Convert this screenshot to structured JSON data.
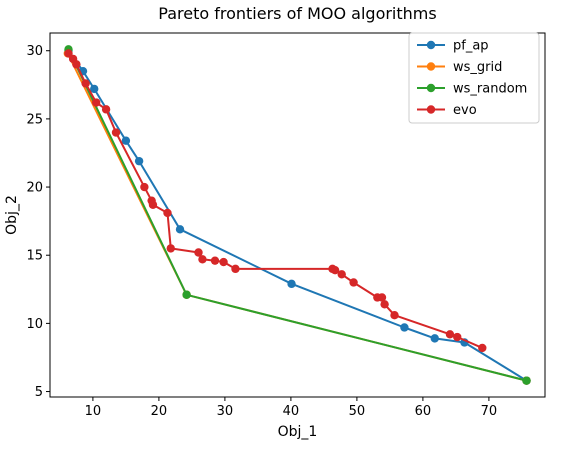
{
  "chart_data": {
    "type": "line",
    "title": "Pareto frontiers of MOO algorithms",
    "xlabel": "Obj_1",
    "ylabel": "Obj_2",
    "xlim": [
      3.5,
      78.5
    ],
    "ylim": [
      4.6,
      31.3
    ],
    "xticks": [
      10,
      20,
      30,
      40,
      50,
      60,
      70
    ],
    "yticks": [
      5,
      10,
      15,
      20,
      25,
      30
    ],
    "legend_position": "top-right",
    "grid": false,
    "series": [
      {
        "name": "pf_ap",
        "color": "#1f77b4",
        "points": [
          [
            6.3,
            30.0
          ],
          [
            8.5,
            28.5
          ],
          [
            10.2,
            27.2
          ],
          [
            15.0,
            23.4
          ],
          [
            17.0,
            21.9
          ],
          [
            23.2,
            16.9
          ],
          [
            40.1,
            12.9
          ],
          [
            57.2,
            9.7
          ],
          [
            61.8,
            8.9
          ],
          [
            66.3,
            8.6
          ],
          [
            75.7,
            5.8
          ]
        ]
      },
      {
        "name": "ws_grid",
        "color": "#ff7f0e",
        "points": [
          [
            6.2,
            29.8
          ],
          [
            24.2,
            12.1
          ],
          [
            75.7,
            5.8
          ]
        ]
      },
      {
        "name": "ws_random",
        "color": "#2ca02c",
        "points": [
          [
            6.3,
            30.1
          ],
          [
            24.2,
            12.1
          ],
          [
            75.7,
            5.8
          ]
        ]
      },
      {
        "name": "evo",
        "color": "#d62728",
        "points": [
          [
            6.3,
            29.8
          ],
          [
            7.0,
            29.4
          ],
          [
            7.5,
            29.0
          ],
          [
            8.9,
            27.6
          ],
          [
            10.5,
            26.2
          ],
          [
            12.0,
            25.7
          ],
          [
            13.5,
            24.0
          ],
          [
            17.8,
            20.0
          ],
          [
            18.9,
            19.0
          ],
          [
            19.1,
            18.7
          ],
          [
            21.3,
            18.1
          ],
          [
            21.8,
            15.5
          ],
          [
            26.0,
            15.2
          ],
          [
            26.6,
            14.7
          ],
          [
            28.5,
            14.6
          ],
          [
            29.8,
            14.5
          ],
          [
            31.6,
            14.0
          ],
          [
            46.3,
            14.0
          ],
          [
            46.7,
            13.9
          ],
          [
            47.7,
            13.6
          ],
          [
            49.5,
            13.0
          ],
          [
            53.1,
            11.9
          ],
          [
            53.8,
            11.9
          ],
          [
            54.2,
            11.4
          ],
          [
            55.7,
            10.6
          ],
          [
            64.1,
            9.2
          ],
          [
            65.2,
            9.0
          ],
          [
            69.0,
            8.2
          ]
        ]
      }
    ]
  }
}
